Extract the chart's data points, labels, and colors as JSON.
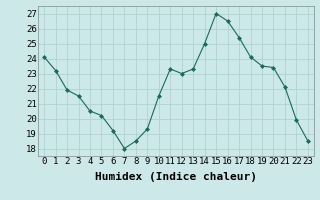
{
  "x": [
    0,
    1,
    2,
    3,
    4,
    5,
    6,
    7,
    8,
    9,
    10,
    11,
    12,
    13,
    14,
    15,
    16,
    17,
    18,
    19,
    20,
    21,
    22,
    23
  ],
  "y": [
    24.1,
    23.2,
    21.9,
    21.5,
    20.5,
    20.2,
    19.2,
    18.0,
    18.5,
    19.3,
    21.5,
    23.3,
    23.0,
    23.3,
    25.0,
    27.0,
    26.5,
    25.4,
    24.1,
    23.5,
    23.4,
    22.1,
    19.9,
    18.5
  ],
  "xlabel": "Humidex (Indice chaleur)",
  "ylim": [
    17.5,
    27.5
  ],
  "xlim": [
    -0.5,
    23.5
  ],
  "line_color": "#1a6b5a",
  "marker": "D",
  "marker_size": 2.0,
  "bg_color": "#cce8e8",
  "grid_color": "#aacece",
  "tick_label_fontsize": 6.5,
  "xlabel_fontsize": 8,
  "yticks": [
    18,
    19,
    20,
    21,
    22,
    23,
    24,
    25,
    26,
    27
  ],
  "xticks": [
    0,
    1,
    2,
    3,
    4,
    5,
    6,
    7,
    8,
    9,
    10,
    11,
    12,
    13,
    14,
    15,
    16,
    17,
    18,
    19,
    20,
    21,
    22,
    23
  ]
}
